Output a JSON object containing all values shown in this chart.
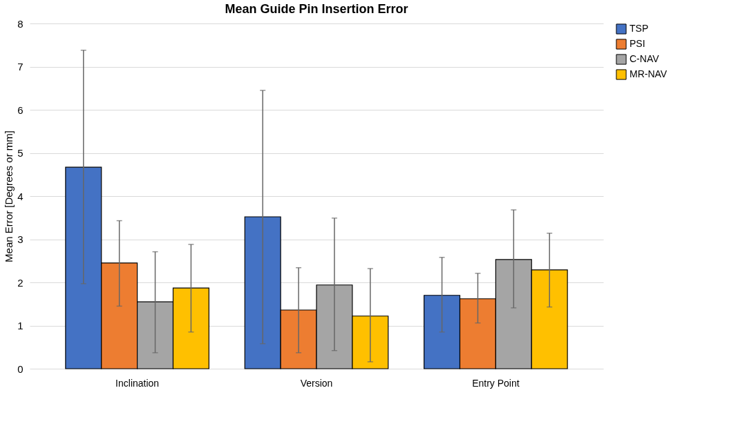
{
  "chart_data": {
    "type": "bar",
    "title": "Mean Guide Pin Insertion Error",
    "ylabel": "Mean Error [Degrees or mm]",
    "categories": [
      "Inclination",
      "Version",
      "Entry Point"
    ],
    "series": [
      {
        "name": "TSP",
        "color": "#4472c4",
        "values": [
          4.67,
          3.52,
          1.7
        ],
        "errors": [
          [
            1.97,
            7.38
          ],
          [
            0.58,
            6.45
          ],
          [
            0.85,
            2.58
          ]
        ]
      },
      {
        "name": "PSI",
        "color": "#ed7d31",
        "values": [
          2.45,
          1.36,
          1.62
        ],
        "errors": [
          [
            1.45,
            3.43
          ],
          [
            0.37,
            2.34
          ],
          [
            1.06,
            2.21
          ]
        ]
      },
      {
        "name": "C-NAV",
        "color": "#a5a5a5",
        "values": [
          1.55,
          1.94,
          2.53
        ],
        "errors": [
          [
            0.37,
            2.71
          ],
          [
            0.42,
            3.49
          ],
          [
            1.41,
            3.68
          ]
        ]
      },
      {
        "name": "MR-NAV",
        "color": "#ffc000",
        "values": [
          1.87,
          1.22,
          2.29
        ],
        "errors": [
          [
            0.85,
            2.88
          ],
          [
            0.16,
            2.32
          ],
          [
            1.43,
            3.14
          ]
        ]
      }
    ],
    "ylim": [
      0,
      8
    ],
    "yticks": [
      0,
      1,
      2,
      3,
      4,
      5,
      6,
      7,
      8
    ],
    "grid": "y",
    "legend": "right"
  }
}
